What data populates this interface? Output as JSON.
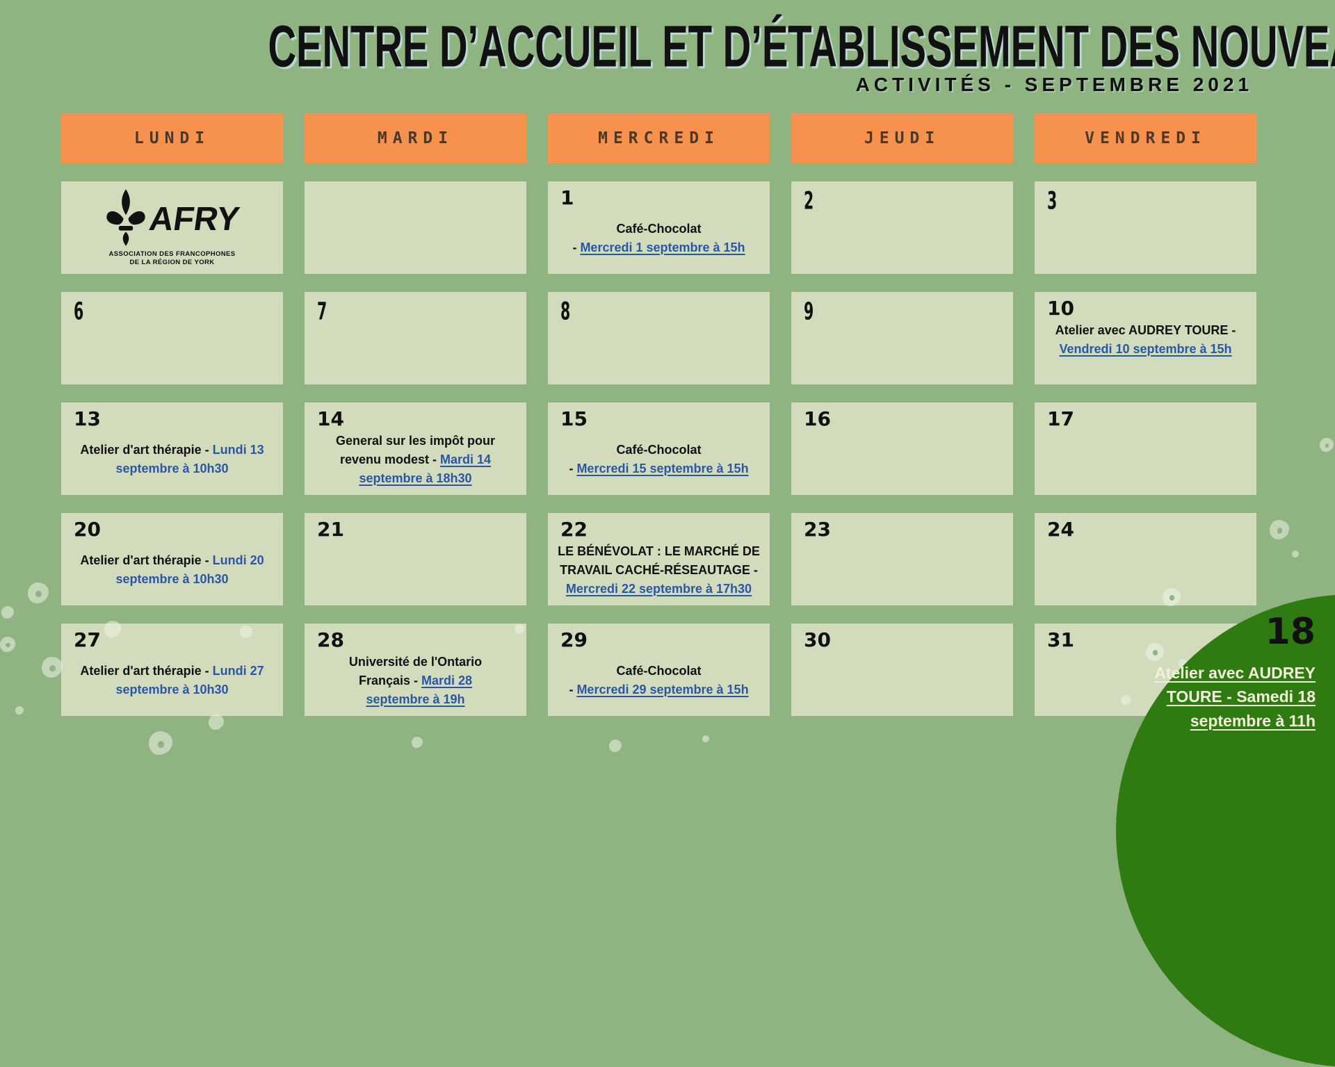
{
  "title": "CENTRE D’ACCUEIL ET D’ÉTABLISSEMENT DES NOUVEAUX ARRIVANTS",
  "subtitle": "ACTIVITÉS - SEPTEMBRE 2021",
  "logo": {
    "brand": "AFRY",
    "tagline1": "ASSOCIATION DES FRANCOPHONES",
    "tagline2": "DE LA RÉGION DE YORK"
  },
  "day_headers": [
    "LUNDI",
    "MARDI",
    "MERCREDI",
    "JEUDI",
    "VENDREDI"
  ],
  "colors": {
    "background": "#8fb482",
    "cell": "#d3dbbd",
    "header": "#f6924e",
    "header_text": "#4a392b",
    "link": "#2a57a5",
    "accent_circle": "#2f7b12",
    "circle_text": "#f2efdc",
    "text": "#111111",
    "title_shadow": "#bcd8d2"
  },
  "weeks": [
    [
      {
        "type": "logo"
      },
      {
        "type": "blank"
      },
      {
        "type": "event",
        "day": "1",
        "gap": true,
        "lines": [
          [
            {
              "s": "p",
              "t": "Café-Chocolat"
            }
          ],
          [
            {
              "s": "p",
              "t": "- "
            },
            {
              "s": "lu",
              "t": "Mercredi 1 septembre à 15h"
            }
          ]
        ]
      },
      {
        "type": "day",
        "day": "2",
        "condensed": true
      },
      {
        "type": "day",
        "day": "3",
        "condensed": true
      }
    ],
    [
      {
        "type": "day",
        "day": "6",
        "condensed": true
      },
      {
        "type": "day",
        "day": "7",
        "condensed": true
      },
      {
        "type": "day",
        "day": "8",
        "condensed": true
      },
      {
        "type": "day",
        "day": "9",
        "condensed": true
      },
      {
        "type": "event",
        "day": "10",
        "gap": false,
        "lines": [
          [
            {
              "s": "p",
              "t": "Atelier avec AUDREY TOURE -"
            }
          ],
          [
            {
              "s": "lu",
              "t": "Vendredi 10 septembre à 15h"
            }
          ]
        ]
      }
    ],
    [
      {
        "type": "event",
        "day": "13",
        "gap": true,
        "lines": [
          [
            {
              "s": "p",
              "t": "Atelier d'art thérapie - "
            },
            {
              "s": "l",
              "t": "Lundi 13"
            }
          ],
          [
            {
              "s": "l",
              "t": "septembre à 10h30"
            }
          ]
        ]
      },
      {
        "type": "event",
        "day": "14",
        "gap": false,
        "lines": [
          [
            {
              "s": "p",
              "t": "General sur les impôt pour"
            }
          ],
          [
            {
              "s": "p",
              "t": "revenu modest - "
            },
            {
              "s": "lu",
              "t": "Mardi 14"
            }
          ],
          [
            {
              "s": "lu",
              "t": "septembre à 18h30"
            }
          ]
        ]
      },
      {
        "type": "event",
        "day": "15",
        "gap": true,
        "lines": [
          [
            {
              "s": "p",
              "t": "Café-Chocolat"
            }
          ],
          [
            {
              "s": "p",
              "t": "- "
            },
            {
              "s": "lu",
              "t": "Mercredi 15 septembre à 15h"
            }
          ]
        ]
      },
      {
        "type": "day",
        "day": "16"
      },
      {
        "type": "day",
        "day": "17"
      }
    ],
    [
      {
        "type": "event",
        "day": "20",
        "gap": true,
        "lines": [
          [
            {
              "s": "p",
              "t": "Atelier d'art thérapie - "
            },
            {
              "s": "l",
              "t": "Lundi 20"
            }
          ],
          [
            {
              "s": "l",
              "t": "septembre à 10h30"
            }
          ]
        ]
      },
      {
        "type": "day",
        "day": "21"
      },
      {
        "type": "event",
        "day": "22",
        "gap": false,
        "lines": [
          [
            {
              "s": "p",
              "t": "LE BÉNÉVOLAT : LE MARCHÉ DE"
            }
          ],
          [
            {
              "s": "p",
              "t": "TRAVAIL CACHÉ-RÉSEAUTAGE -"
            }
          ],
          [
            {
              "s": "lu",
              "t": "Mercredi 22 septembre à 17h30"
            }
          ]
        ]
      },
      {
        "type": "day",
        "day": "23"
      },
      {
        "type": "day",
        "day": "24"
      }
    ],
    [
      {
        "type": "event",
        "day": "27",
        "gap": true,
        "lines": [
          [
            {
              "s": "p",
              "t": "Atelier d'art thérapie - "
            },
            {
              "s": "l",
              "t": "Lundi 27"
            }
          ],
          [
            {
              "s": "l",
              "t": "septembre à 10h30"
            }
          ]
        ]
      },
      {
        "type": "event",
        "day": "28",
        "gap": false,
        "lines": [
          [
            {
              "s": "p",
              "t": "Université de l'Ontario"
            }
          ],
          [
            {
              "s": "p",
              "t": "Français - "
            },
            {
              "s": "lu",
              "t": "Mardi 28"
            }
          ],
          [
            {
              "s": "lu",
              "t": "septembre à 19h"
            }
          ]
        ]
      },
      {
        "type": "event",
        "day": "29",
        "gap": true,
        "lines": [
          [
            {
              "s": "p",
              "t": "Café-Chocolat"
            }
          ],
          [
            {
              "s": "p",
              "t": "- "
            },
            {
              "s": "lu",
              "t": "Mercredi 29 septembre à 15h"
            }
          ]
        ]
      },
      {
        "type": "day",
        "day": "30"
      },
      {
        "type": "day",
        "day": "31"
      }
    ]
  ],
  "highlight": {
    "day": "18",
    "lines": [
      "Atelier avec AUDREY",
      "TOURE - Samedi 18",
      "septembre à 11h"
    ]
  }
}
